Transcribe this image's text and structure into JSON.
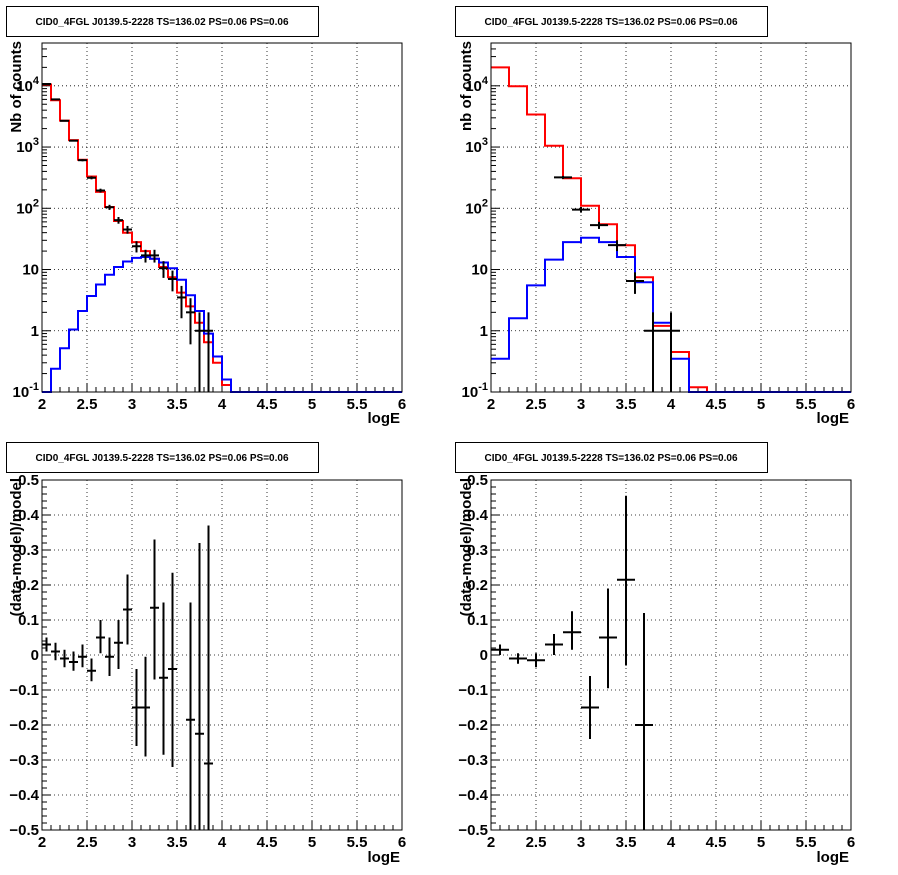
{
  "chart_data": [
    {
      "type": "line",
      "title": "CID0_4FGL J0139.5-2228 TS=136.02 PS=0.06 PS=0.06",
      "xlabel": "logE",
      "ylabel": "Nb of counts",
      "xlim": [
        2,
        6
      ],
      "ylim": [
        0.1,
        50000
      ],
      "ylog": true,
      "grid": true,
      "x_ticks": [
        "2",
        "2.5",
        "3",
        "3.5",
        "4",
        "4.5",
        "5",
        "5.5",
        "6"
      ],
      "y_ticks": [
        {
          "value": 0.1,
          "base": "10",
          "exp": "-1"
        },
        {
          "value": 1,
          "label": "1"
        },
        {
          "value": 10,
          "label": "10"
        },
        {
          "value": 100,
          "base": "10",
          "exp": "2"
        },
        {
          "value": 1000,
          "base": "10",
          "exp": "3"
        },
        {
          "value": 10000,
          "base": "10",
          "exp": "4"
        }
      ],
      "bin_width": 0.1,
      "bin_edges_start": 2.0,
      "series": [
        {
          "color": "#ff0000",
          "kind": "hist",
          "values": [
            10500,
            5800,
            2700,
            1300,
            620,
            330,
            185,
            105,
            62,
            40,
            28,
            20,
            15,
            11,
            7.5,
            4.2,
            2.5,
            1.35,
            0.65,
            0.3,
            0.13,
            0.1,
            0.1,
            0.1,
            0.1,
            0.1,
            0.1,
            0.1,
            0.1,
            0.1,
            0.1,
            0.1,
            0.1,
            0.1,
            0.1,
            0.1,
            0.1,
            0.1,
            0.1,
            0.1
          ]
        },
        {
          "color": "#0000ff",
          "kind": "hist",
          "values": [
            0.1,
            0.24,
            0.52,
            1.05,
            2.1,
            3.7,
            5.7,
            8.2,
            11,
            13.5,
            15.5,
            16,
            15,
            13,
            10.5,
            6.8,
            3.8,
            2.1,
            0.9,
            0.38,
            0.16,
            0.1,
            0.1,
            0.1,
            0.1,
            0.1,
            0.1,
            0.1,
            0.1,
            0.1,
            0.1,
            0.1,
            0.1,
            0.1,
            0.1,
            0.1,
            0.1,
            0.1,
            0.1,
            0.1
          ]
        },
        {
          "color": "#000000",
          "kind": "points",
          "points": [
            {
              "x": 2.05,
              "y": 10700,
              "lo": 10500,
              "hi": 10900
            },
            {
              "x": 2.15,
              "y": 6000,
              "lo": 5850,
              "hi": 6150
            },
            {
              "x": 2.25,
              "y": 2680,
              "lo": 2630,
              "hi": 2730
            },
            {
              "x": 2.35,
              "y": 1270,
              "lo": 1235,
              "hi": 1305
            },
            {
              "x": 2.45,
              "y": 610,
              "lo": 585,
              "hi": 635
            },
            {
              "x": 2.55,
              "y": 315,
              "lo": 297,
              "hi": 333
            },
            {
              "x": 2.65,
              "y": 195,
              "lo": 181,
              "hi": 209
            },
            {
              "x": 2.75,
              "y": 104,
              "lo": 94,
              "hi": 114
            },
            {
              "x": 2.85,
              "y": 64,
              "lo": 56,
              "hi": 72
            },
            {
              "x": 2.95,
              "y": 45,
              "lo": 38.5,
              "hi": 51.5
            },
            {
              "x": 3.05,
              "y": 24,
              "lo": 19,
              "hi": 29
            },
            {
              "x": 3.15,
              "y": 17,
              "lo": 13,
              "hi": 21
            },
            {
              "x": 3.25,
              "y": 17,
              "lo": 13,
              "hi": 21
            },
            {
              "x": 3.35,
              "y": 10.5,
              "lo": 7.3,
              "hi": 13.7
            },
            {
              "x": 3.45,
              "y": 7,
              "lo": 4.4,
              "hi": 9.6
            },
            {
              "x": 3.55,
              "y": 3.5,
              "lo": 1.6,
              "hi": 5.4
            },
            {
              "x": 3.65,
              "y": 2,
              "lo": 0.6,
              "hi": 3.4
            },
            {
              "x": 3.75,
              "y": 1,
              "lo": 0.1,
              "hi": 2
            },
            {
              "x": 3.85,
              "y": 1,
              "lo": 0.1,
              "hi": 2
            }
          ]
        }
      ]
    },
    {
      "type": "line",
      "title": "CID0_4FGL J0139.5-2228 TS=136.02 PS=0.06 PS=0.06",
      "xlabel": "logE",
      "ylabel": "nb of counts",
      "xlim": [
        2,
        6
      ],
      "ylim": [
        0.1,
        50000
      ],
      "ylog": true,
      "grid": true,
      "x_ticks": [
        "2",
        "2.5",
        "3",
        "3.5",
        "4",
        "4.5",
        "5",
        "5.5",
        "6"
      ],
      "y_ticks": [
        {
          "value": 0.1,
          "base": "10",
          "exp": "-1"
        },
        {
          "value": 1,
          "label": "1"
        },
        {
          "value": 10,
          "label": "10"
        },
        {
          "value": 100,
          "base": "10",
          "exp": "2"
        },
        {
          "value": 1000,
          "base": "10",
          "exp": "3"
        },
        {
          "value": 10000,
          "base": "10",
          "exp": "4"
        }
      ],
      "bin_width": 0.2,
      "bin_edges_start": 2.0,
      "series": [
        {
          "color": "#ff0000",
          "kind": "hist",
          "values": [
            20000,
            9800,
            3400,
            1050,
            310,
            110,
            55,
            25,
            7.5,
            1.2,
            0.45,
            0.12,
            0.1,
            0.1,
            0.1,
            0.1,
            0.1,
            0.1,
            0.1,
            0.1
          ]
        },
        {
          "color": "#0000ff",
          "kind": "hist",
          "values": [
            0.35,
            1.6,
            5.5,
            14.5,
            28,
            33,
            28,
            16,
            6.2,
            1.35,
            0.35,
            0.1,
            0.1,
            0.1,
            0.1,
            0.1,
            0.1,
            0.1,
            0.1,
            0.1
          ]
        },
        {
          "color": "#000000",
          "kind": "points",
          "points": [
            {
              "x": 2.8,
              "y": 320,
              "lo": 302,
              "hi": 338
            },
            {
              "x": 3.0,
              "y": 95,
              "lo": 85,
              "hi": 105
            },
            {
              "x": 3.2,
              "y": 53,
              "lo": 46,
              "hi": 60
            },
            {
              "x": 3.4,
              "y": 25,
              "lo": 20,
              "hi": 30
            },
            {
              "x": 3.6,
              "y": 6.5,
              "lo": 4,
              "hi": 9
            },
            {
              "x": 3.8,
              "y": 1,
              "lo": 0.1,
              "hi": 2
            },
            {
              "x": 4.0,
              "y": 1,
              "lo": 0.1,
              "hi": 2
            }
          ]
        }
      ]
    },
    {
      "type": "scatter",
      "title": "CID0_4FGL J0139.5-2228 TS=136.02 PS=0.06 PS=0.06",
      "xlabel": "logE",
      "ylabel": "(data-model)/model",
      "xlim": [
        2,
        6
      ],
      "ylim": [
        -0.5,
        0.5
      ],
      "ylog": false,
      "grid": true,
      "x_ticks": [
        "2",
        "2.5",
        "3",
        "3.5",
        "4",
        "4.5",
        "5",
        "5.5",
        "6"
      ],
      "y_ticks": [
        {
          "value": -0.5,
          "label": "−0.5"
        },
        {
          "value": -0.4,
          "label": "−0.4"
        },
        {
          "value": -0.3,
          "label": "−0.3"
        },
        {
          "value": -0.2,
          "label": "−0.2"
        },
        {
          "value": -0.1,
          "label": "−0.1"
        },
        {
          "value": 0,
          "label": "0"
        },
        {
          "value": 0.1,
          "label": "0.1"
        },
        {
          "value": 0.2,
          "label": "0.2"
        },
        {
          "value": 0.3,
          "label": "0.3"
        },
        {
          "value": 0.4,
          "label": "0.4"
        },
        {
          "value": 0.5,
          "label": "0.5"
        }
      ],
      "bin_width": 0.1,
      "series": [
        {
          "color": "#000000",
          "kind": "points",
          "points": [
            {
              "x": 2.05,
              "y": 0.03,
              "lo": 0.01,
              "hi": 0.05
            },
            {
              "x": 2.15,
              "y": 0.01,
              "lo": -0.015,
              "hi": 0.035
            },
            {
              "x": 2.25,
              "y": -0.01,
              "lo": -0.035,
              "hi": 0.015
            },
            {
              "x": 2.35,
              "y": -0.02,
              "lo": -0.045,
              "hi": 0.01
            },
            {
              "x": 2.45,
              "y": -0.005,
              "lo": -0.035,
              "hi": 0.03
            },
            {
              "x": 2.55,
              "y": -0.045,
              "lo": -0.075,
              "hi": -0.01
            },
            {
              "x": 2.65,
              "y": 0.05,
              "lo": 0.005,
              "hi": 0.1
            },
            {
              "x": 2.75,
              "y": -0.005,
              "lo": -0.06,
              "hi": 0.05
            },
            {
              "x": 2.85,
              "y": 0.035,
              "lo": -0.04,
              "hi": 0.1
            },
            {
              "x": 2.95,
              "y": 0.13,
              "lo": 0.03,
              "hi": 0.23
            },
            {
              "x": 3.05,
              "y": -0.15,
              "lo": -0.26,
              "hi": -0.04
            },
            {
              "x": 3.15,
              "y": -0.15,
              "lo": -0.29,
              "hi": -0.005
            },
            {
              "x": 3.25,
              "y": 0.135,
              "lo": -0.07,
              "hi": 0.33
            },
            {
              "x": 3.35,
              "y": -0.065,
              "lo": -0.285,
              "hi": 0.15
            },
            {
              "x": 3.45,
              "y": -0.04,
              "lo": -0.32,
              "hi": 0.235
            },
            {
              "x": 3.65,
              "y": -0.185,
              "lo": -0.5,
              "hi": 0.15
            },
            {
              "x": 3.75,
              "y": -0.225,
              "lo": -0.5,
              "hi": 0.32
            },
            {
              "x": 3.85,
              "y": -0.31,
              "lo": -0.5,
              "hi": 0.37
            }
          ]
        }
      ]
    },
    {
      "type": "scatter",
      "title": "CID0_4FGL J0139.5-2228 TS=136.02 PS=0.06 PS=0.06",
      "xlabel": "logE",
      "ylabel": "(data-model)/model",
      "xlim": [
        2,
        6
      ],
      "ylim": [
        -0.5,
        0.5
      ],
      "ylog": false,
      "grid": true,
      "x_ticks": [
        "2",
        "2.5",
        "3",
        "3.5",
        "4",
        "4.5",
        "5",
        "5.5",
        "6"
      ],
      "y_ticks": [
        {
          "value": -0.5,
          "label": "−0.5"
        },
        {
          "value": -0.4,
          "label": "−0.4"
        },
        {
          "value": -0.3,
          "label": "−0.3"
        },
        {
          "value": -0.2,
          "label": "−0.2"
        },
        {
          "value": -0.1,
          "label": "−0.1"
        },
        {
          "value": 0,
          "label": "0"
        },
        {
          "value": 0.1,
          "label": "0.1"
        },
        {
          "value": 0.2,
          "label": "0.2"
        },
        {
          "value": 0.3,
          "label": "0.3"
        },
        {
          "value": 0.4,
          "label": "0.4"
        },
        {
          "value": 0.5,
          "label": "0.5"
        }
      ],
      "bin_width": 0.2,
      "series": [
        {
          "color": "#000000",
          "kind": "points",
          "points": [
            {
              "x": 2.1,
              "y": 0.015,
              "lo": 0.0,
              "hi": 0.03
            },
            {
              "x": 2.3,
              "y": -0.01,
              "lo": -0.025,
              "hi": 0.005
            },
            {
              "x": 2.5,
              "y": -0.015,
              "lo": -0.035,
              "hi": 0.005
            },
            {
              "x": 2.7,
              "y": 0.03,
              "lo": 0.0,
              "hi": 0.06
            },
            {
              "x": 2.9,
              "y": 0.065,
              "lo": 0.015,
              "hi": 0.125
            },
            {
              "x": 3.1,
              "y": -0.15,
              "lo": -0.24,
              "hi": -0.06
            },
            {
              "x": 3.3,
              "y": 0.05,
              "lo": -0.095,
              "hi": 0.19
            },
            {
              "x": 3.5,
              "y": 0.215,
              "lo": -0.03,
              "hi": 0.455
            },
            {
              "x": 3.7,
              "y": -0.2,
              "lo": -0.5,
              "hi": 0.12
            }
          ]
        }
      ]
    }
  ]
}
